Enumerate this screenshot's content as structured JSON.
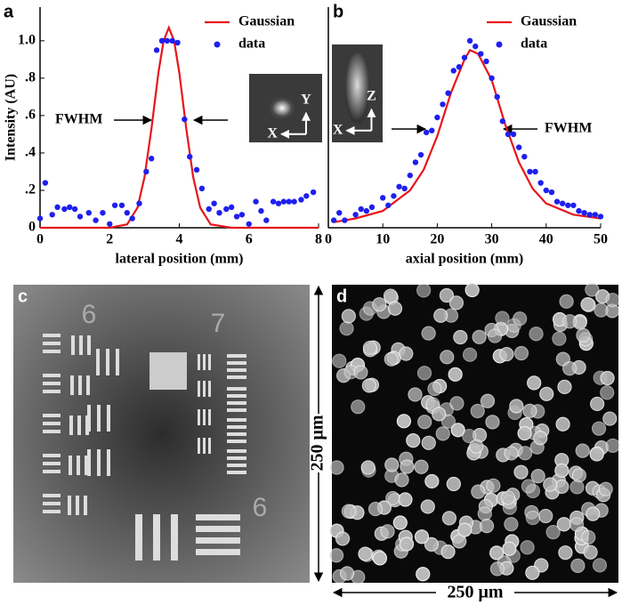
{
  "chart_data": [
    {
      "type": "scatter",
      "panel_label": "a",
      "xlabel": "lateral position (mm)",
      "ylabel": "Intensity (AU)",
      "xlim": [
        0,
        8
      ],
      "ylim": [
        0,
        1.18
      ],
      "xticks": [
        0,
        2,
        4,
        6,
        8
      ],
      "yticks": [
        0,
        {
          "value": 0.2,
          "label": ".2"
        },
        {
          "value": 0.4,
          "label": ".4"
        },
        {
          "value": 0.6,
          "label": ".6"
        },
        {
          "value": 0.8,
          "label": ".8"
        },
        {
          "value": 1,
          "label": "1.0"
        }
      ],
      "legend": "upper right",
      "annotation": "FWHM",
      "inset_axes": [
        "X",
        "Y"
      ],
      "series": [
        {
          "name": "Gaussian",
          "mode": "line",
          "color": "#e8141a",
          "x": [
            0,
            2,
            2.5,
            2.8,
            3.0,
            3.2,
            3.4,
            3.55,
            3.7,
            3.85,
            4.0,
            4.2,
            4.4,
            4.6,
            4.9,
            5.5,
            8
          ],
          "values": [
            0,
            0,
            0.018,
            0.108,
            0.27,
            0.53,
            0.83,
            1.0,
            1.07,
            1.0,
            0.83,
            0.53,
            0.27,
            0.108,
            0.018,
            0,
            0
          ]
        },
        {
          "name": "data",
          "mode": "markers",
          "color": "#1f1fee",
          "x": [
            0,
            0.15,
            0.35,
            0.5,
            0.7,
            0.85,
            1.0,
            1.15,
            1.4,
            1.6,
            1.8,
            2.0,
            2.15,
            2.35,
            2.5,
            2.65,
            2.85,
            3.05,
            3.2,
            3.35,
            3.5,
            3.65,
            3.8,
            3.95,
            4.15,
            4.3,
            4.5,
            4.65,
            4.85,
            5.0,
            5.15,
            5.35,
            5.5,
            5.65,
            5.8,
            6.0,
            6.2,
            6.35,
            6.5,
            6.7,
            6.85,
            7.0,
            7.15,
            7.3,
            7.5,
            7.65,
            7.85
          ],
          "values": [
            0.05,
            0.24,
            0.07,
            0.11,
            0.1,
            0.11,
            0.1,
            0.06,
            0.08,
            0.04,
            0.08,
            0.02,
            0.12,
            0.12,
            0.08,
            0.05,
            0.13,
            0.3,
            0.37,
            0.95,
            1.0,
            1.0,
            1.0,
            0.99,
            0.58,
            0.38,
            0.31,
            0.21,
            0.1,
            0.13,
            0.08,
            0.1,
            0.11,
            0.06,
            0.07,
            0.02,
            0.14,
            0.09,
            0.04,
            0.14,
            0.13,
            0.14,
            0.14,
            0.14,
            0.15,
            0.17,
            0.19
          ]
        }
      ]
    },
    {
      "type": "scatter",
      "panel_label": "b",
      "xlabel": "axial position (mm)",
      "xlim": [
        0,
        50
      ],
      "ylim": [
        0,
        1.18
      ],
      "xticks": [
        0,
        10,
        20,
        30,
        40,
        50
      ],
      "legend": "upper right",
      "annotation": "FWHM",
      "inset_axes": [
        "X",
        "Z"
      ],
      "series": [
        {
          "name": "Gaussian",
          "mode": "line",
          "color": "#e8141a",
          "x": [
            1,
            5,
            10,
            15,
            17.5,
            20,
            22.5,
            25,
            26,
            27.5,
            30,
            32.5,
            35,
            37.5,
            40,
            45,
            50
          ],
          "values": [
            0.03,
            0.05,
            0.09,
            0.2,
            0.31,
            0.49,
            0.72,
            0.9,
            0.95,
            0.93,
            0.79,
            0.55,
            0.35,
            0.21,
            0.13,
            0.07,
            0.05
          ]
        },
        {
          "name": "data",
          "mode": "markers",
          "color": "#1f1fee",
          "x": [
            1,
            2,
            3,
            5,
            6,
            7,
            8,
            10,
            11,
            12,
            13,
            14,
            15,
            16,
            17,
            18,
            19,
            20,
            21,
            22,
            23,
            24,
            25,
            26,
            27,
            28,
            29,
            30,
            31,
            32,
            33,
            34,
            35,
            36,
            37,
            38,
            39,
            40,
            41,
            42,
            43,
            44,
            45,
            46,
            47,
            48,
            49,
            50
          ],
          "values": [
            0.04,
            0.08,
            0.04,
            0.07,
            0.1,
            0.09,
            0.11,
            0.16,
            0.12,
            0.17,
            0.22,
            0.21,
            0.28,
            0.35,
            0.39,
            0.51,
            0.52,
            0.59,
            0.66,
            0.72,
            0.84,
            0.86,
            0.91,
            1.0,
            0.97,
            0.93,
            0.89,
            0.8,
            0.7,
            0.57,
            0.5,
            0.5,
            0.43,
            0.38,
            0.3,
            0.3,
            0.24,
            0.2,
            0.19,
            0.14,
            0.13,
            0.12,
            0.12,
            0.09,
            0.08,
            0.07,
            0.07,
            0.06
          ]
        }
      ]
    }
  ],
  "panels": [
    {
      "label": "c",
      "target_numbers": [
        "6",
        "7",
        "6"
      ]
    },
    {
      "label": "d",
      "scale_height": "250 μm",
      "scale_width": "250 μm"
    }
  ]
}
